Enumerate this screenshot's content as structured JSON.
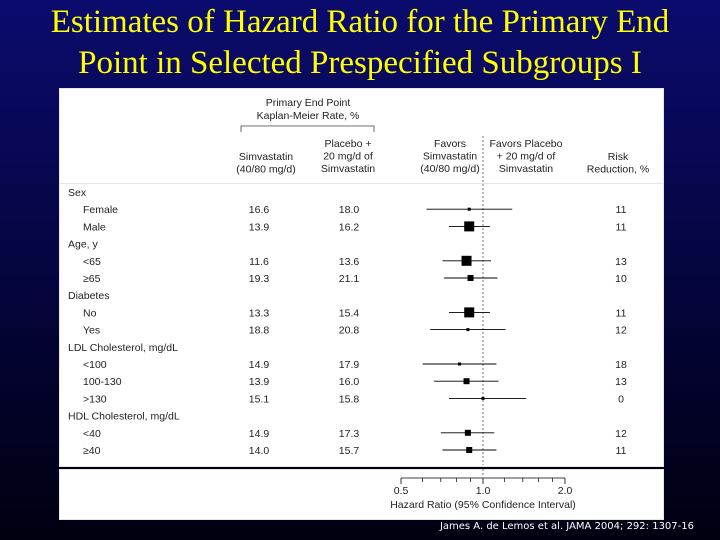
{
  "title_line1": "Estimates of Hazard Ratio for the Primary End",
  "title_line2": "Point in Selected Prespecified Subgroups I",
  "footer": "James A. de Lemos et al. JAMA 2004; 292: 1307-16",
  "colors": {
    "background": "#0b0b6e",
    "title": "#ffff00",
    "panel": "#ffffff",
    "marker": "#000000"
  },
  "header": {
    "group_label_1": "Primary End Point",
    "group_label_2": "Kaplan-Meier Rate, %",
    "col_simva": [
      "Simvastatin",
      "(40/80 mg/d)"
    ],
    "col_placebo": [
      "Placebo +",
      "20 mg/d of",
      "Simvastatin"
    ],
    "favors_simva": [
      "Favors",
      "Simvastatin",
      "(40/80 mg/d)"
    ],
    "favors_placebo": [
      "Favors Placebo",
      "+ 20 mg/d of",
      "Simvastatin"
    ],
    "risk": [
      "Risk",
      "Reduction, %"
    ]
  },
  "chart_data": {
    "type": "forest",
    "title": "Estimates of Hazard Ratio for the Primary End Point in Selected Prespecified Subgroups I",
    "xlabel": "Hazard Ratio (95% Confidence Interval)",
    "x_scale": "log",
    "xlim": [
      0.5,
      2.0
    ],
    "x_ticks": [
      "0.5",
      "1.0",
      "2.0"
    ],
    "reference_line": 1.0,
    "groups": [
      {
        "name": "Sex",
        "rows": [
          {
            "label": "Female",
            "simva": "16.6",
            "placebo": "18.0",
            "hr": 0.89,
            "ci": [
              0.62,
              1.28
            ],
            "risk_reduction": "11",
            "marker": "small"
          },
          {
            "label": "Male",
            "simva": "13.9",
            "placebo": "16.2",
            "hr": 0.89,
            "ci": [
              0.75,
              1.06
            ],
            "risk_reduction": "11",
            "marker": "large"
          }
        ]
      },
      {
        "name": "Age, y",
        "rows": [
          {
            "label": "<65",
            "simva": "11.6",
            "placebo": "13.6",
            "hr": 0.87,
            "ci": [
              0.71,
              1.07
            ],
            "risk_reduction": "13",
            "marker": "large"
          },
          {
            "label": "≥65",
            "simva": "19.3",
            "placebo": "21.1",
            "hr": 0.9,
            "ci": [
              0.72,
              1.13
            ],
            "risk_reduction": "10",
            "marker": "medium"
          }
        ]
      },
      {
        "name": "Diabetes",
        "rows": [
          {
            "label": "No",
            "simva": "13.3",
            "placebo": "15.4",
            "hr": 0.89,
            "ci": [
              0.75,
              1.06
            ],
            "risk_reduction": "11",
            "marker": "large"
          },
          {
            "label": "Yes",
            "simva": "18.8",
            "placebo": "20.8",
            "hr": 0.88,
            "ci": [
              0.64,
              1.21
            ],
            "risk_reduction": "12",
            "marker": "small"
          }
        ]
      },
      {
        "name": "LDL Cholesterol, mg/dL",
        "rows": [
          {
            "label": "<100",
            "simva": "14.9",
            "placebo": "17.9",
            "hr": 0.82,
            "ci": [
              0.6,
              1.12
            ],
            "risk_reduction": "18",
            "marker": "small"
          },
          {
            "label": "100-130",
            "simva": "13.9",
            "placebo": "16.0",
            "hr": 0.87,
            "ci": [
              0.66,
              1.14
            ],
            "risk_reduction": "13",
            "marker": "medium"
          },
          {
            "label": ">130",
            "simva": "15.1",
            "placebo": "15.8",
            "hr": 1.0,
            "ci": [
              0.75,
              1.44
            ],
            "risk_reduction": "0",
            "marker": "small"
          }
        ]
      },
      {
        "name": "HDL Cholesterol, mg/dL",
        "rows": [
          {
            "label": "<40",
            "simva": "14.9",
            "placebo": "17.3",
            "hr": 0.88,
            "ci": [
              0.7,
              1.1
            ],
            "risk_reduction": "12",
            "marker": "medium"
          },
          {
            "label": "≥40",
            "simva": "14.0",
            "placebo": "15.7",
            "hr": 0.89,
            "ci": [
              0.71,
              1.12
            ],
            "risk_reduction": "11",
            "marker": "medium"
          }
        ]
      }
    ]
  }
}
